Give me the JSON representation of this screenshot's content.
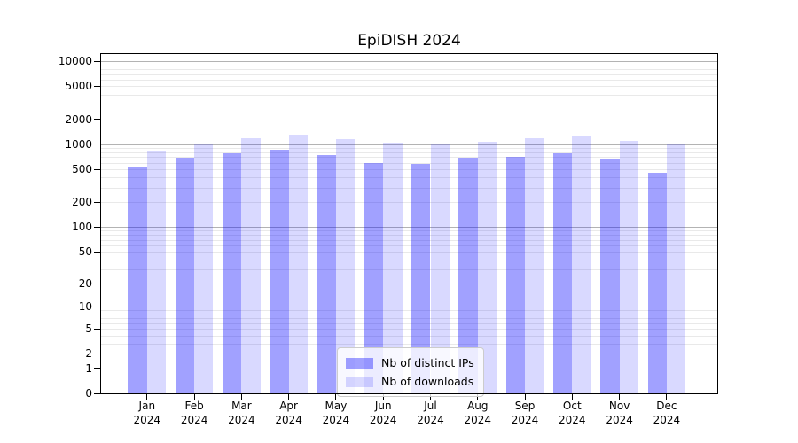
{
  "window": {
    "background": "#ffffff"
  },
  "chart_data": {
    "type": "bar",
    "title": "EpiDISH 2024",
    "categories": [
      "Jan",
      "Feb",
      "Mar",
      "Apr",
      "May",
      "Jun",
      "Jul",
      "Aug",
      "Sep",
      "Oct",
      "Nov",
      "Dec"
    ],
    "year": "2024",
    "series": [
      {
        "name": "Nb of distinct IPs",
        "color": "#0000FF5E",
        "values": [
          540,
          690,
          780,
          860,
          740,
          600,
          580,
          690,
          710,
          780,
          670,
          450
        ]
      },
      {
        "name": "Nb of downloads",
        "color": "#0000FF26",
        "values": [
          840,
          1000,
          1190,
          1320,
          1160,
          1050,
          1010,
          1070,
          1180,
          1270,
          1100,
          1030
        ]
      }
    ],
    "xlabel": "",
    "ylabel": "",
    "y_ticks": [
      0,
      1,
      2,
      5,
      10,
      20,
      50,
      100,
      200,
      500,
      1000,
      2000,
      5000,
      10000
    ],
    "yscale": "log1p",
    "ylim": [
      0,
      12500
    ],
    "grid": "horizontal-major-and-minor",
    "legend_position": "lower center",
    "colors": {
      "grid_major": "#b3b3b3",
      "grid_minor": "#e9e9e9",
      "axis": "#000000",
      "text": "#000000"
    }
  }
}
